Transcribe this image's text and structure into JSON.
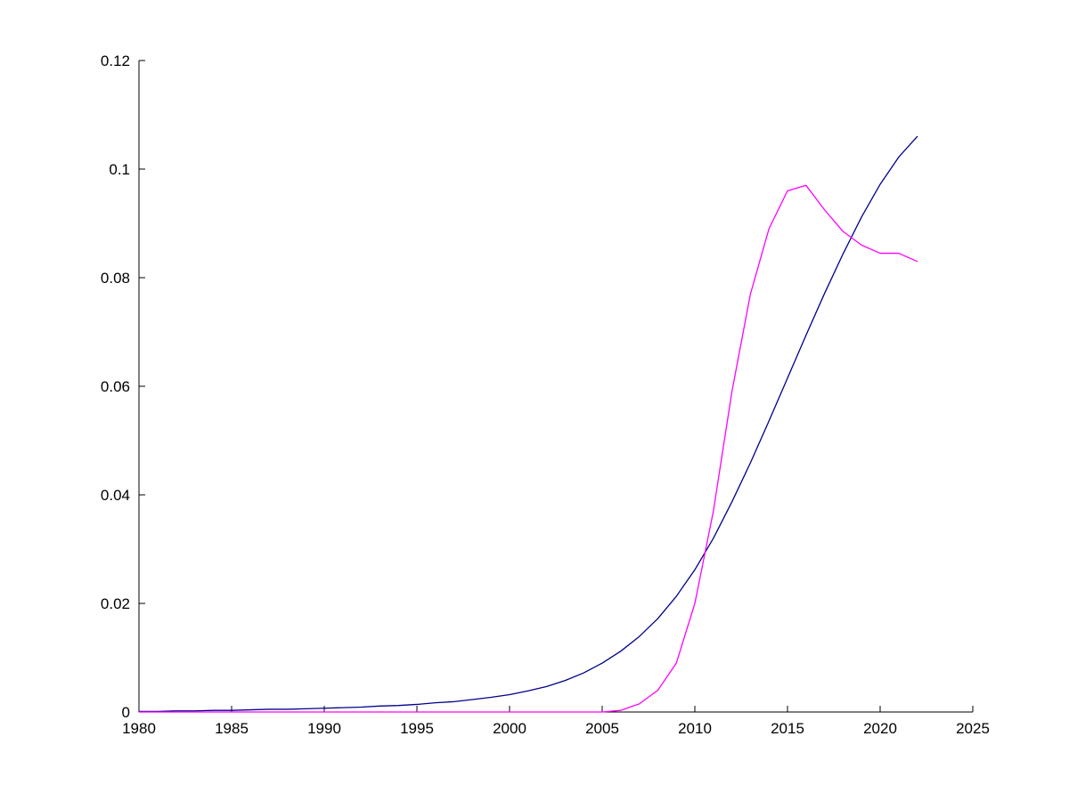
{
  "figure": {
    "background": "#ffffff",
    "axis_color": "#000000"
  },
  "chart_data": {
    "type": "line",
    "title": "",
    "xlabel": "",
    "ylabel": "",
    "grid": false,
    "legend_position": "none",
    "xlim": [
      1980,
      2025
    ],
    "ylim": [
      0,
      0.12
    ],
    "x_ticks": [
      1980,
      1985,
      1990,
      1995,
      2000,
      2005,
      2010,
      2015,
      2020,
      2025
    ],
    "x_tick_labels": [
      "1980",
      "1985",
      "1990",
      "1995",
      "2000",
      "2005",
      "2010",
      "2015",
      "2020",
      "2025"
    ],
    "y_ticks": [
      0,
      0.02,
      0.04,
      0.06,
      0.08,
      0.1,
      0.12
    ],
    "y_tick_labels": [
      "0",
      "0.02",
      "0.04",
      "0.06",
      "0.08",
      "0.1",
      "0.12"
    ],
    "x": [
      1980,
      1981,
      1982,
      1983,
      1984,
      1985,
      1986,
      1987,
      1988,
      1989,
      1990,
      1991,
      1992,
      1993,
      1994,
      1995,
      1996,
      1997,
      1998,
      1999,
      2000,
      2001,
      2002,
      2003,
      2004,
      2005,
      2006,
      2007,
      2008,
      2009,
      2010,
      2011,
      2012,
      2013,
      2014,
      2015,
      2016,
      2017,
      2018,
      2019,
      2020,
      2021,
      2022
    ],
    "series": [
      {
        "name": "series1-dark-blue",
        "color": "#00008B",
        "values": [
          0.0001,
          0.0001,
          0.0002,
          0.0002,
          0.0003,
          0.0003,
          0.0004,
          0.0005,
          0.0005,
          0.0006,
          0.0007,
          0.0008,
          0.0009,
          0.0011,
          0.0012,
          0.0014,
          0.0017,
          0.0019,
          0.0023,
          0.0027,
          0.0032,
          0.0039,
          0.0047,
          0.0058,
          0.0072,
          0.009,
          0.0112,
          0.0139,
          0.0172,
          0.0213,
          0.0262,
          0.032,
          0.0387,
          0.0459,
          0.0536,
          0.0615,
          0.0694,
          0.0771,
          0.0844,
          0.0912,
          0.0972,
          0.1022,
          0.106
        ]
      },
      {
        "name": "series2-magenta",
        "color": "#FF00FF",
        "values": [
          0,
          0,
          0,
          0,
          0,
          0,
          0,
          0,
          0,
          0,
          0,
          0,
          0,
          0,
          0,
          0,
          0,
          0,
          0,
          0,
          0,
          0,
          0,
          0,
          0,
          0,
          0.0003,
          0.0015,
          0.004,
          0.009,
          0.02,
          0.037,
          0.059,
          0.077,
          0.089,
          0.096,
          0.097,
          0.0925,
          0.0885,
          0.086,
          0.0845,
          0.0845,
          0.083
        ]
      }
    ]
  }
}
